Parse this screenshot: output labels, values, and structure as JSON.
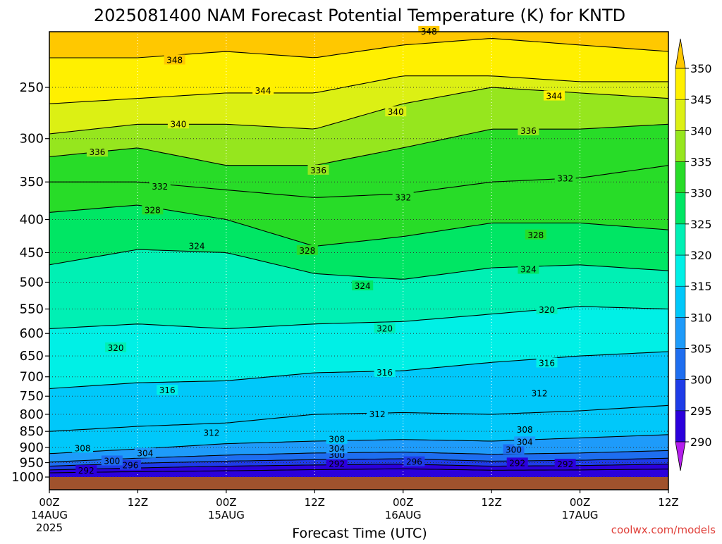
{
  "chart_data": {
    "type": "contour",
    "title": "2025081400 NAM Forecast Potential Temperature (K) for KNTD",
    "xlabel": "Forecast Time (UTC)",
    "ylabel": "",
    "credit": "coolwx.com/models",
    "x_unit": "forecast hour",
    "xlim": [
      0,
      84
    ],
    "y_scale": "log-pressure",
    "ylim": [
      1000,
      200
    ],
    "y_ticks": [
      1000,
      950,
      900,
      850,
      800,
      750,
      700,
      650,
      600,
      550,
      500,
      450,
      400,
      350,
      300,
      250
    ],
    "x_ticks": [
      {
        "hour": 0,
        "label": "00Z",
        "date": "14AUG",
        "year": "2025"
      },
      {
        "hour": 12,
        "label": "12Z",
        "date": "",
        "year": ""
      },
      {
        "hour": 24,
        "label": "00Z",
        "date": "15AUG",
        "year": ""
      },
      {
        "hour": 36,
        "label": "12Z",
        "date": "",
        "year": ""
      },
      {
        "hour": 48,
        "label": "00Z",
        "date": "16AUG",
        "year": ""
      },
      {
        "hour": 60,
        "label": "12Z",
        "date": "",
        "year": ""
      },
      {
        "hour": 72,
        "label": "00Z",
        "date": "17AUG",
        "year": ""
      },
      {
        "hour": 84,
        "label": "12Z",
        "date": "",
        "year": ""
      }
    ],
    "colorbar": {
      "levels": [
        290,
        295,
        300,
        305,
        310,
        315,
        320,
        325,
        330,
        335,
        340,
        345,
        350
      ],
      "colors": [
        "#b41eed",
        "#2b00dc",
        "#1e3ce8",
        "#1e6ef0",
        "#1e9bfa",
        "#00c8fa",
        "#00f0e6",
        "#00f0b4",
        "#00e664",
        "#28dc28",
        "#96e61e",
        "#dcf014",
        "#fff000",
        "#ffc800"
      ],
      "extend": "both"
    },
    "grid": "dotted",
    "ground_color": "#a0522d",
    "ground_level_hpa": 1000,
    "hours": [
      0,
      12,
      24,
      36,
      48,
      60,
      72,
      84
    ],
    "contours": [
      {
        "value": 292,
        "label": "292",
        "pressures": [
          985,
          981,
          978,
          974,
          971,
          976,
          975,
          972
        ]
      },
      {
        "value": 296,
        "label": "296",
        "pressures": [
          975,
          968,
          962,
          958,
          955,
          962,
          960,
          955
        ]
      },
      {
        "value": 300,
        "label": "300",
        "pressures": [
          962,
          952,
          945,
          940,
          937,
          945,
          942,
          935
        ]
      },
      {
        "value": 304,
        "label": "304",
        "pressures": [
          948,
          935,
          925,
          918,
          915,
          922,
          918,
          910
        ]
      },
      {
        "value": 308,
        "label": "308",
        "pressures": [
          920,
          905,
          888,
          880,
          875,
          880,
          870,
          860
        ]
      },
      {
        "value": 312,
        "label": "312",
        "pressures": [
          850,
          835,
          825,
          800,
          795,
          800,
          790,
          775
        ]
      },
      {
        "value": 316,
        "label": "316",
        "pressures": [
          730,
          715,
          710,
          690,
          685,
          665,
          650,
          640
        ]
      },
      {
        "value": 320,
        "label": "320",
        "pressures": [
          590,
          580,
          590,
          580,
          575,
          560,
          545,
          550
        ]
      },
      {
        "value": 324,
        "label": "324",
        "pressures": [
          470,
          445,
          450,
          485,
          495,
          475,
          470,
          480
        ]
      },
      {
        "value": 328,
        "label": "328",
        "pressures": [
          390,
          380,
          400,
          440,
          425,
          405,
          405,
          415
        ]
      },
      {
        "value": 332,
        "label": "332",
        "pressures": [
          350,
          350,
          360,
          370,
          365,
          350,
          345,
          330
        ]
      },
      {
        "value": 336,
        "label": "336",
        "pressures": [
          320,
          310,
          330,
          330,
          310,
          290,
          290,
          285
        ]
      },
      {
        "value": 340,
        "label": "340",
        "pressures": [
          295,
          285,
          285,
          290,
          265,
          250,
          255,
          260
        ]
      },
      {
        "value": 344,
        "label": "344",
        "pressures": [
          265,
          260,
          255,
          255,
          240,
          240,
          245,
          245
        ]
      },
      {
        "value": 348,
        "label": "348",
        "pressures": [
          225,
          225,
          220,
          225,
          215,
          210,
          215,
          220
        ]
      }
    ],
    "contour_labels": [
      {
        "value": "292",
        "hour": 5,
        "pressure": 978
      },
      {
        "value": "296",
        "hour": 11,
        "pressure": 960
      },
      {
        "value": "300",
        "hour": 8.5,
        "pressure": 945
      },
      {
        "value": "304",
        "hour": 13,
        "pressure": 920
      },
      {
        "value": "308",
        "hour": 4.5,
        "pressure": 903
      },
      {
        "value": "292",
        "hour": 39,
        "pressure": 955
      },
      {
        "value": "300",
        "hour": 39,
        "pressure": 925
      },
      {
        "value": "304",
        "hour": 39,
        "pressure": 905
      },
      {
        "value": "308",
        "hour": 39,
        "pressure": 875
      },
      {
        "value": "296",
        "hour": 49.5,
        "pressure": 948
      },
      {
        "value": "292",
        "hour": 63.5,
        "pressure": 952
      },
      {
        "value": "292",
        "hour": 70,
        "pressure": 956
      },
      {
        "value": "300",
        "hour": 63,
        "pressure": 908
      },
      {
        "value": "304",
        "hour": 64.5,
        "pressure": 883
      },
      {
        "value": "308",
        "hour": 64.5,
        "pressure": 845
      },
      {
        "value": "312",
        "hour": 22,
        "pressure": 855
      },
      {
        "value": "312",
        "hour": 44.5,
        "pressure": 800
      },
      {
        "value": "312",
        "hour": 66.5,
        "pressure": 743
      },
      {
        "value": "316",
        "hour": 16,
        "pressure": 735
      },
      {
        "value": "316",
        "hour": 45.5,
        "pressure": 690
      },
      {
        "value": "316",
        "hour": 67.5,
        "pressure": 667
      },
      {
        "value": "320",
        "hour": 9,
        "pressure": 632
      },
      {
        "value": "320",
        "hour": 45.5,
        "pressure": 590
      },
      {
        "value": "320",
        "hour": 67.5,
        "pressure": 552
      },
      {
        "value": "324",
        "hour": 20,
        "pressure": 440
      },
      {
        "value": "324",
        "hour": 42.5,
        "pressure": 507
      },
      {
        "value": "324",
        "hour": 65,
        "pressure": 478
      },
      {
        "value": "328",
        "hour": 14,
        "pressure": 387
      },
      {
        "value": "328",
        "hour": 35,
        "pressure": 447
      },
      {
        "value": "328",
        "hour": 66,
        "pressure": 423
      },
      {
        "value": "332",
        "hour": 15,
        "pressure": 356
      },
      {
        "value": "332",
        "hour": 48,
        "pressure": 370
      },
      {
        "value": "332",
        "hour": 70,
        "pressure": 346
      },
      {
        "value": "336",
        "hour": 6.5,
        "pressure": 315
      },
      {
        "value": "336",
        "hour": 36.5,
        "pressure": 336
      },
      {
        "value": "336",
        "hour": 65,
        "pressure": 292
      },
      {
        "value": "340",
        "hour": 17.5,
        "pressure": 285
      },
      {
        "value": "340",
        "hour": 47,
        "pressure": 273
      },
      {
        "value": "344",
        "hour": 29,
        "pressure": 253
      },
      {
        "value": "344",
        "hour": 68.5,
        "pressure": 258
      },
      {
        "value": "348",
        "hour": 17,
        "pressure": 227
      },
      {
        "value": "348",
        "hour": 51.5,
        "pressure": 205
      }
    ]
  }
}
